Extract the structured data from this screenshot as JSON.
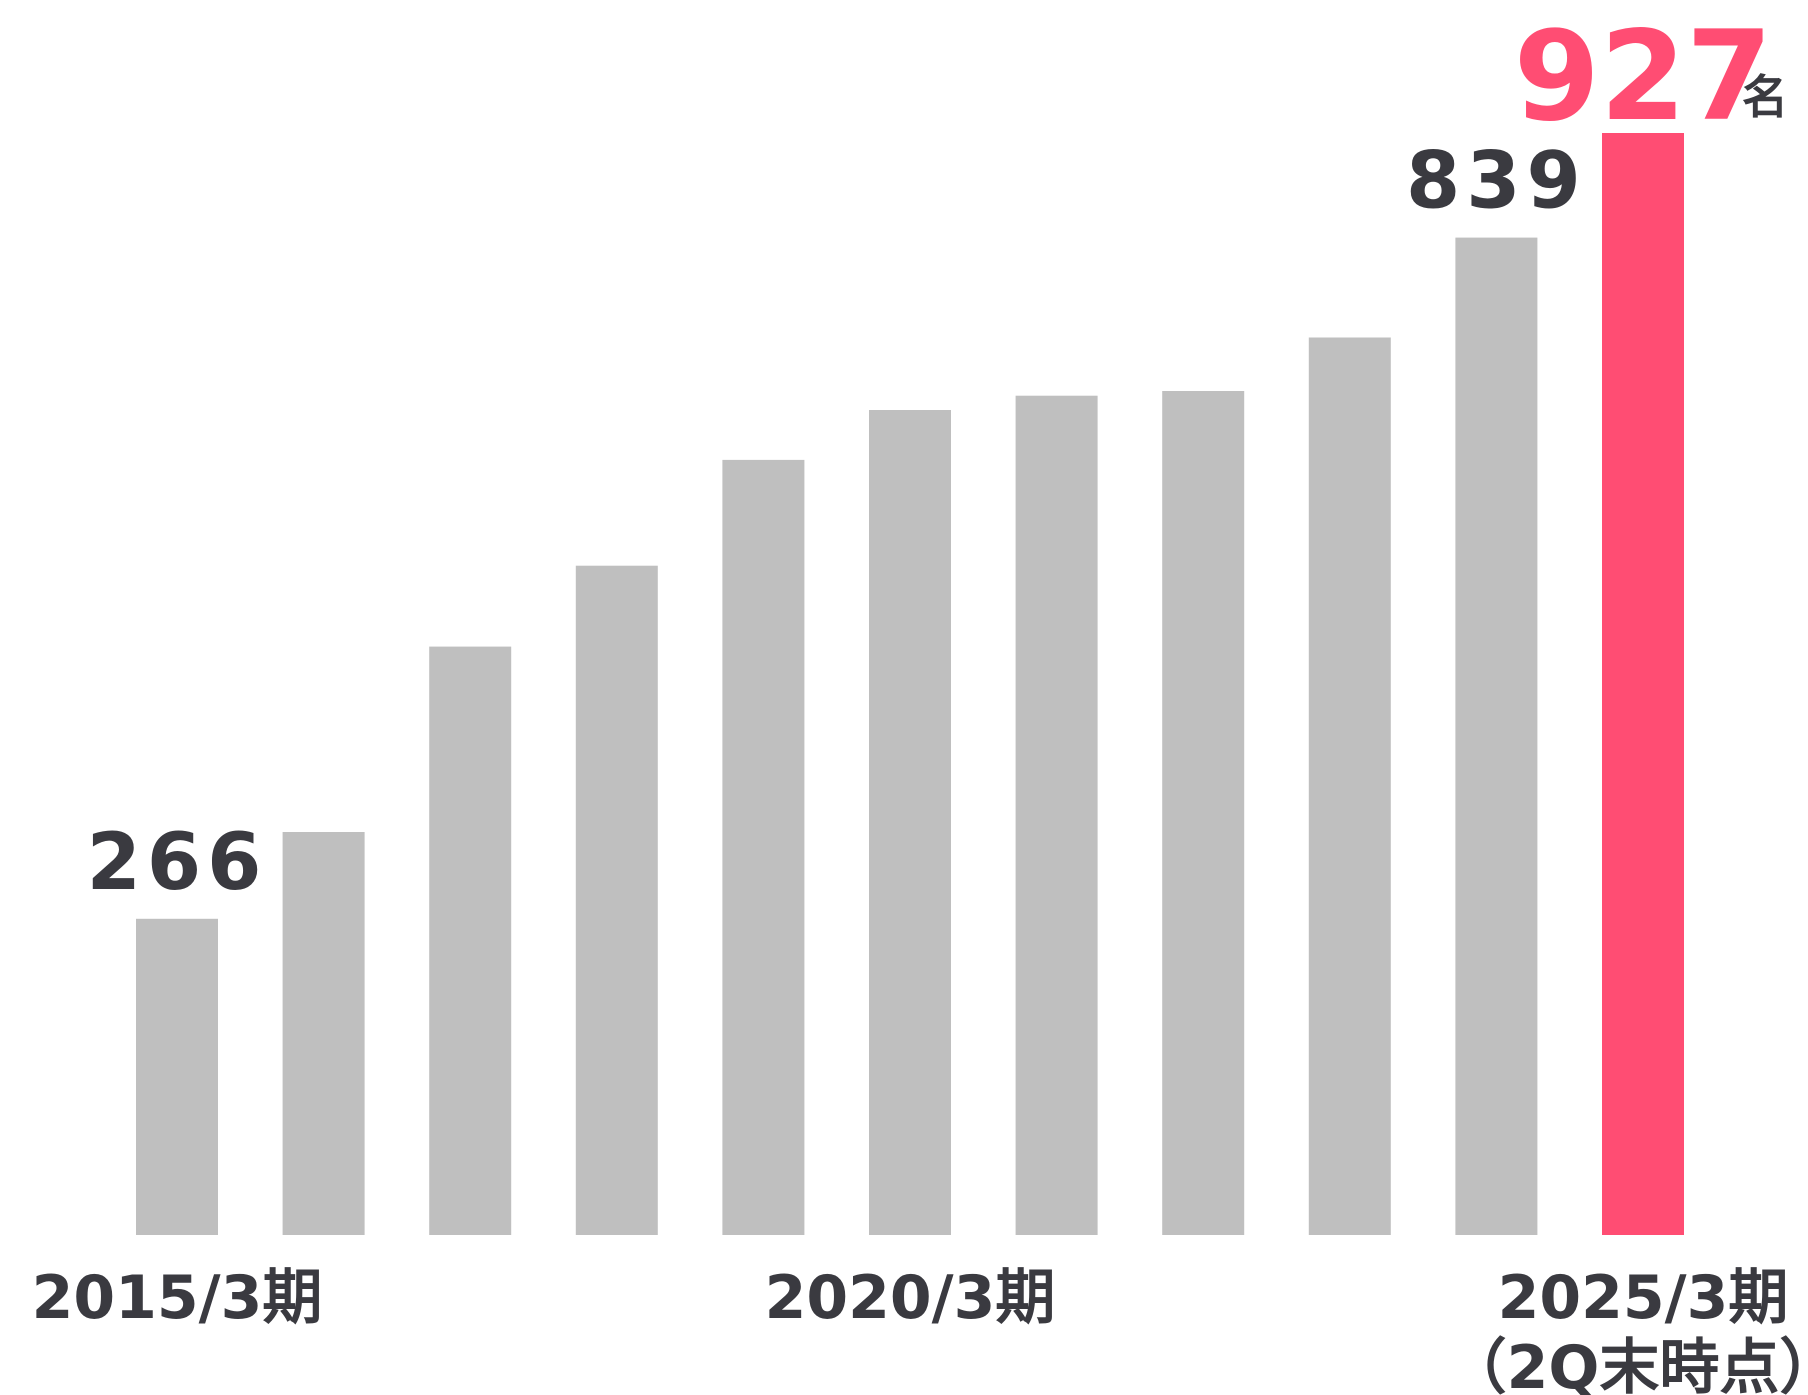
{
  "chart_data": {
    "type": "bar",
    "categories": [
      "2015/3期",
      "",
      "",
      "",
      "",
      "2020/3期",
      "",
      "",
      "",
      "",
      "2025/3期"
    ],
    "tick_labels": [
      {
        "index": 0,
        "lines": [
          "2015/3期"
        ]
      },
      {
        "index": 5,
        "lines": [
          "2020/3期"
        ]
      },
      {
        "index": 10,
        "lines": [
          "2025/3期",
          "（2Q末時点）"
        ]
      }
    ],
    "values": [
      266,
      339,
      495,
      563,
      652,
      694,
      706,
      710,
      755,
      839,
      927
    ],
    "data_labels": [
      {
        "index": 0,
        "text": "266"
      },
      {
        "index": 9,
        "text": "839"
      },
      {
        "index": 10,
        "text": "927"
      }
    ],
    "unit": "名",
    "highlight_index": 10,
    "ylim": [
      0,
      927
    ],
    "grid": false,
    "legend": "none",
    "colors": {
      "bar": "#bfbfbf",
      "highlight": "#ff4d73",
      "text": "#3a3a40"
    }
  }
}
